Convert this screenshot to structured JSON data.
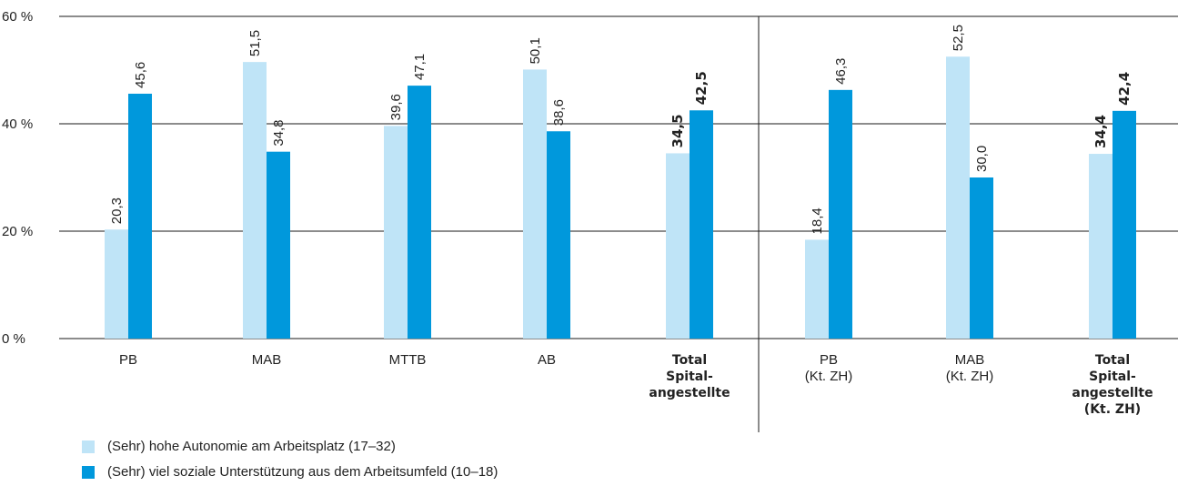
{
  "chart_data": {
    "type": "bar",
    "y_ticks": [
      "0 %",
      "20 %",
      "40 %",
      "60 %"
    ],
    "ylim": [
      0,
      60
    ],
    "grid": true,
    "categories": [
      {
        "lines": [
          "PB"
        ],
        "bold": false
      },
      {
        "lines": [
          "MAB"
        ],
        "bold": false
      },
      {
        "lines": [
          "MTTB"
        ],
        "bold": false
      },
      {
        "lines": [
          "AB"
        ],
        "bold": false
      },
      {
        "lines": [
          "Total",
          "Spital-",
          "angestellte"
        ],
        "bold": true
      },
      {
        "lines": [
          "PB",
          "(Kt. ZH)"
        ],
        "bold": false
      },
      {
        "lines": [
          "MAB",
          "(Kt. ZH)"
        ],
        "bold": false
      },
      {
        "lines": [
          "Total",
          "Spital-",
          "angestellte",
          "(Kt. ZH)"
        ],
        "bold": true
      }
    ],
    "series": [
      {
        "name": "(Sehr) hohe Autonomie am Arbeitsplatz (17–32)",
        "color": "#bfe4f7",
        "values": [
          20.3,
          51.5,
          39.6,
          50.1,
          34.5,
          18.4,
          52.5,
          34.4
        ],
        "labels": [
          "20,3",
          "51,5",
          "39,6",
          "50,1",
          "34,5",
          "18,4",
          "52,5",
          "34,4"
        ]
      },
      {
        "name": "(Sehr) viel soziale Unterstützung aus dem Arbeitsumfeld (10–18)",
        "color": "#0098dc",
        "values": [
          45.6,
          34.8,
          47.1,
          38.6,
          42.5,
          46.3,
          30.0,
          42.4
        ],
        "labels": [
          "45,6",
          "34,8",
          "47,1",
          "38,6",
          "42,5",
          "46,3",
          "30,0",
          "42,4"
        ]
      }
    ],
    "legend_position": "bottom-left"
  }
}
